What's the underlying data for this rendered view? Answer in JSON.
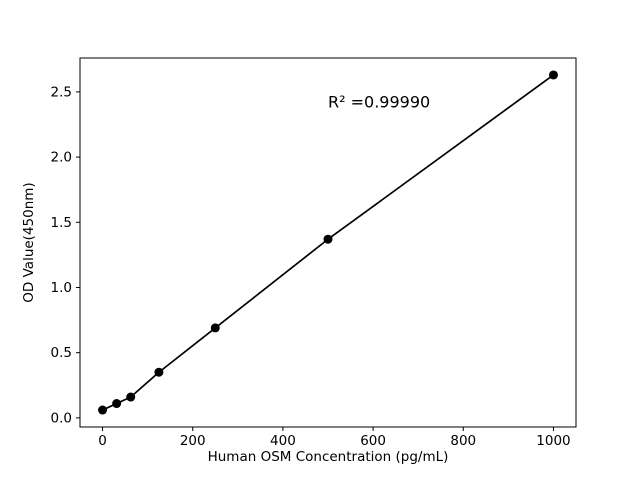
{
  "chart_data": {
    "type": "scatter",
    "title": "",
    "xlabel": "Human OSM Concentration (pg/mL)",
    "ylabel": "OD Value(450nm)",
    "annotation": "R² =0.99990",
    "annotation_xy": [
      500,
      2.38
    ],
    "x": [
      0,
      31.25,
      62.5,
      125,
      250,
      500,
      1000
    ],
    "y": [
      0.06,
      0.11,
      0.16,
      0.35,
      0.69,
      1.37,
      2.63
    ],
    "xlim": [
      -50,
      1050
    ],
    "ylim": [
      -0.07,
      2.76
    ],
    "xticks": [
      0,
      200,
      400,
      600,
      800,
      1000
    ],
    "xtick_labels": [
      "0",
      "200",
      "400",
      "600",
      "800",
      "1000"
    ],
    "yticks": [
      0.0,
      0.5,
      1.0,
      1.5,
      2.0,
      2.5
    ],
    "ytick_labels": [
      "0.0",
      "0.5",
      "1.0",
      "1.5",
      "2.0",
      "2.5"
    ],
    "grid": false,
    "line": true,
    "legend": null,
    "line_color": "#000000",
    "marker_color": "#000000",
    "background_color": "#ffffff"
  }
}
